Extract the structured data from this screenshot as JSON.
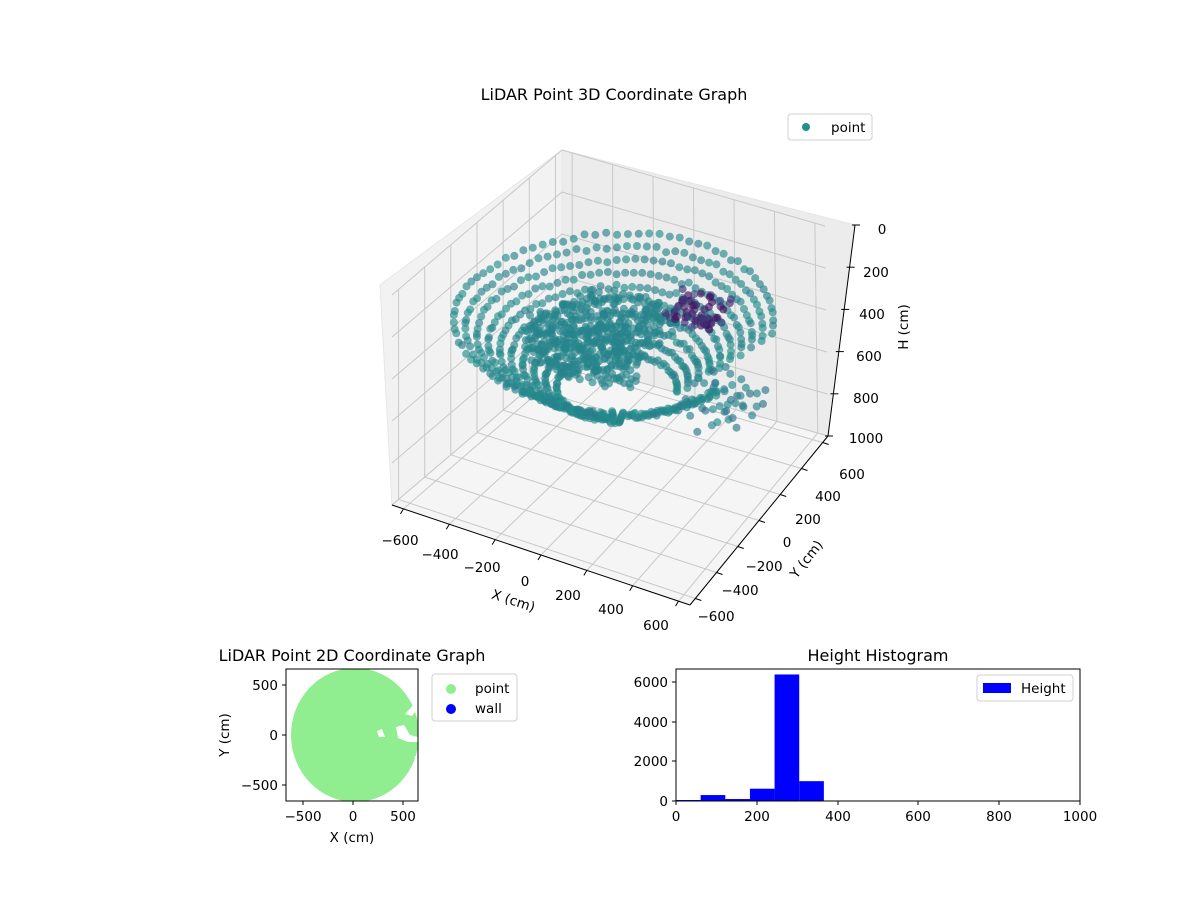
{
  "figure": {
    "background": "#ffffff"
  },
  "chart_data": [
    {
      "type": "scatter",
      "projection": "3d",
      "title": "LiDAR Point 3D Coordinate Graph",
      "xlabel": "X (cm)",
      "ylabel": "Y (cm)",
      "zlabel": "H (cm)",
      "x_ticks": [
        "−600",
        "−400",
        "−200",
        "0",
        "200",
        "400",
        "600"
      ],
      "y_ticks": [
        "−600",
        "−400",
        "−200",
        "0",
        "200",
        "400",
        "600"
      ],
      "z_ticks": [
        "0",
        "200",
        "400",
        "600",
        "800",
        "1000"
      ],
      "xlim": [
        -650,
        650
      ],
      "ylim": [
        -650,
        650
      ],
      "zlim": [
        0,
        1000
      ],
      "z_inverted": true,
      "legend": [
        {
          "label": "point",
          "color": "#21908d"
        }
      ],
      "legend_position": "upper right",
      "colormap": "viridis",
      "description": "Dome-like ring of points (radius ~650 cm) at heights ~250-370 cm with a notch opening toward +X; darker purple points near the upper region (lower H).",
      "grid": true
    },
    {
      "type": "scatter",
      "title": "LiDAR Point 2D Coordinate Graph",
      "xlabel": "X (cm)",
      "ylabel": "Y (cm)",
      "x_ticks": [
        "−500",
        "0",
        "500"
      ],
      "y_ticks": [
        "−500",
        "0",
        "500"
      ],
      "xlim": [
        -650,
        650
      ],
      "ylim": [
        -650,
        650
      ],
      "series": [
        {
          "name": "point",
          "color": "#90ee90",
          "description": "Filled disc of radius ~650 cm centered near origin with small gaps near +X"
        },
        {
          "name": "wall",
          "color": "#0000ff",
          "values": []
        }
      ],
      "legend": [
        {
          "label": "point",
          "color": "#90ee90"
        },
        {
          "label": "wall",
          "color": "#0000ff"
        }
      ],
      "legend_position": "outside upper right"
    },
    {
      "type": "bar",
      "subtype": "histogram",
      "title": "Height Histogram",
      "xlabel": "",
      "ylabel": "",
      "bin_edges": [
        0,
        61,
        122,
        183,
        244,
        305,
        366
      ],
      "values": [
        50,
        300,
        100,
        620,
        6380,
        1000
      ],
      "x_ticks": [
        "0",
        "200",
        "400",
        "600",
        "800",
        "1000"
      ],
      "y_ticks": [
        "0",
        "2000",
        "4000",
        "6000"
      ],
      "xlim": [
        0,
        1000
      ],
      "ylim": [
        0,
        6700
      ],
      "legend": [
        {
          "label": "Height",
          "color": "#0000ff"
        }
      ],
      "legend_position": "upper right",
      "color": "#0000ff"
    }
  ]
}
